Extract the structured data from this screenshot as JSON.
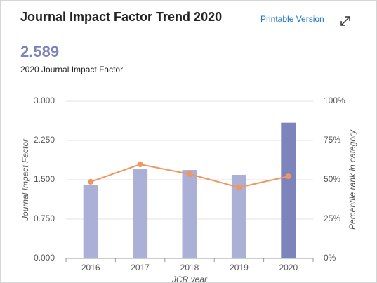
{
  "header": {
    "title": "Journal Impact Factor Trend 2020",
    "link": "Printable Version",
    "metric": "2.589",
    "metric_label": "2020 Journal Impact Factor"
  },
  "chart_data": {
    "type": "bar",
    "categories": [
      "2016",
      "2017",
      "2018",
      "2019",
      "2020"
    ],
    "series": [
      {
        "type": "bar",
        "colors": [
          "#aab0d6",
          "#aab0d6",
          "#aab0d6",
          "#aab0d6",
          "#7d84bb"
        ],
        "values": [
          1.406,
          1.714,
          1.687,
          1.594,
          2.589
        ]
      },
      {
        "type": "line",
        "axis": "y2",
        "color": "#f0965e",
        "values": [
          48.7,
          59.8,
          53.6,
          45.1,
          52.2
        ]
      }
    ],
    "ylabel": "Journal Impact Factor",
    "y2label": "Percentile rank in category",
    "xlabel": "JCR year",
    "ylim": [
      0,
      3
    ],
    "yticks": [
      {
        "value": 0,
        "label": "0.000"
      },
      {
        "value": 0.75,
        "label": "0.750"
      },
      {
        "value": 1.5,
        "label": "1.500"
      },
      {
        "value": 2.25,
        "label": "2.250"
      },
      {
        "value": 3,
        "label": "3.000"
      }
    ],
    "y2lim": [
      0,
      100
    ],
    "y2ticks": [
      {
        "value": 0,
        "label": "0%"
      },
      {
        "value": 25,
        "label": "25%"
      },
      {
        "value": 50,
        "label": "50%"
      },
      {
        "value": 75,
        "label": "75%"
      },
      {
        "value": 100,
        "label": "100%"
      }
    ],
    "grid": true
  }
}
